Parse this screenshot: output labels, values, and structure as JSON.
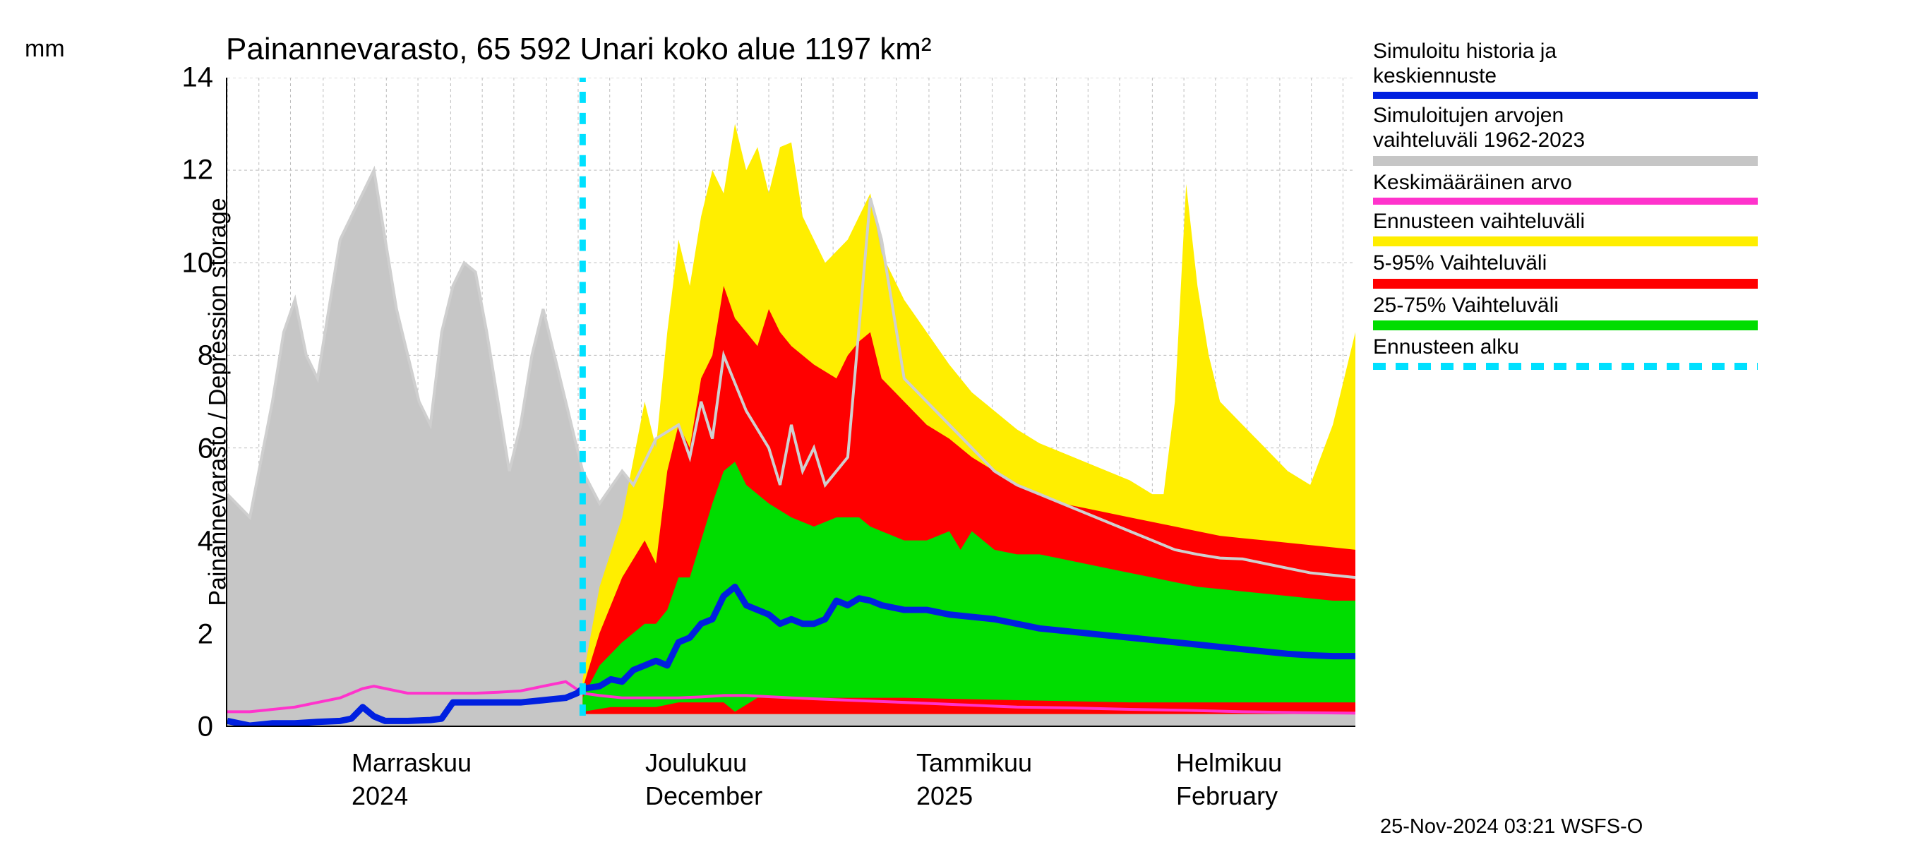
{
  "title": "Painannevarasto, 65 592 Unari koko alue 1197 km²",
  "y_axis": {
    "label": "Painannevarasto / Depression storage",
    "unit": "mm",
    "min": 0,
    "max": 14,
    "tick_step": 2,
    "ticks": [
      0,
      2,
      4,
      6,
      8,
      10,
      12,
      14
    ]
  },
  "x_axis": {
    "labels": [
      {
        "pos": 0.11,
        "line1": "Marraskuu",
        "line2": "2024"
      },
      {
        "pos": 0.37,
        "line1": "Joulukuu",
        "line2": "December"
      },
      {
        "pos": 0.61,
        "line1": "Tammikuu",
        "line2": "2025"
      },
      {
        "pos": 0.84,
        "line1": "Helmikuu",
        "line2": "February"
      }
    ],
    "grid_lines": [
      0.0,
      0.028,
      0.056,
      0.085,
      0.113,
      0.141,
      0.169,
      0.198,
      0.226,
      0.254,
      0.283,
      0.311,
      0.339,
      0.367,
      0.396,
      0.424,
      0.452,
      0.48,
      0.509,
      0.537,
      0.565,
      0.593,
      0.622,
      0.65,
      0.678,
      0.707,
      0.735,
      0.763,
      0.791,
      0.82,
      0.848,
      0.876,
      0.904,
      0.933,
      0.961,
      0.989
    ]
  },
  "forecast_start_x": 0.315,
  "colors": {
    "background": "#ffffff",
    "grid": "#bbbbbb",
    "historic_range": "#c6c6c6",
    "historic_range_line": "#cfcfcf",
    "mean": "#ff33cc",
    "blue": "#0020e0",
    "yellow": "#ffee00",
    "red": "#ff0000",
    "green": "#00dd00",
    "cyan": "#00e0ff"
  },
  "legend": [
    {
      "label1": "Simuloitu historia ja",
      "label2": "keskiennuste",
      "color": "#0020e0",
      "type": "line"
    },
    {
      "label1": "Simuloitujen arvojen",
      "label2": "vaihteluväli 1962-2023",
      "color": "#c6c6c6",
      "type": "band"
    },
    {
      "label1": "Keskimääräinen arvo",
      "label2": "",
      "color": "#ff33cc",
      "type": "line"
    },
    {
      "label1": "Ennusteen vaihteluväli",
      "label2": "",
      "color": "#ffee00",
      "type": "band"
    },
    {
      "label1": "5-95% Vaihteluväli",
      "label2": "",
      "color": "#ff0000",
      "type": "band"
    },
    {
      "label1": "25-75% Vaihteluväli",
      "label2": "",
      "color": "#00dd00",
      "type": "band"
    },
    {
      "label1": "Ennusteen alku",
      "label2": "",
      "color": "#00e0ff",
      "type": "dashed"
    }
  ],
  "timestamp": "25-Nov-2024 03:21 WSFS-O",
  "series": {
    "historic_gray_top": [
      [
        0.0,
        5.0
      ],
      [
        0.02,
        4.5
      ],
      [
        0.04,
        7.0
      ],
      [
        0.05,
        8.5
      ],
      [
        0.06,
        9.2
      ],
      [
        0.07,
        8.0
      ],
      [
        0.08,
        7.5
      ],
      [
        0.09,
        9.0
      ],
      [
        0.1,
        10.5
      ],
      [
        0.11,
        11.0
      ],
      [
        0.12,
        11.5
      ],
      [
        0.13,
        12.0
      ],
      [
        0.14,
        10.5
      ],
      [
        0.15,
        9.0
      ],
      [
        0.16,
        8.0
      ],
      [
        0.17,
        7.0
      ],
      [
        0.18,
        6.5
      ],
      [
        0.19,
        8.5
      ],
      [
        0.2,
        9.5
      ],
      [
        0.21,
        10.0
      ],
      [
        0.22,
        9.8
      ],
      [
        0.23,
        8.5
      ],
      [
        0.24,
        7.0
      ],
      [
        0.25,
        5.5
      ],
      [
        0.26,
        6.5
      ],
      [
        0.27,
        8.0
      ],
      [
        0.28,
        9.0
      ],
      [
        0.29,
        8.0
      ],
      [
        0.3,
        7.0
      ],
      [
        0.315,
        5.5
      ],
      [
        0.33,
        4.8
      ],
      [
        0.35,
        5.5
      ],
      [
        0.36,
        5.2
      ],
      [
        0.38,
        6.2
      ],
      [
        0.4,
        6.5
      ],
      [
        0.41,
        5.8
      ],
      [
        0.42,
        7.0
      ],
      [
        0.43,
        6.2
      ],
      [
        0.44,
        8.0
      ],
      [
        0.46,
        6.8
      ],
      [
        0.48,
        6.0
      ],
      [
        0.49,
        5.2
      ],
      [
        0.5,
        6.5
      ],
      [
        0.51,
        5.5
      ],
      [
        0.52,
        6.0
      ],
      [
        0.53,
        5.2
      ],
      [
        0.55,
        5.8
      ],
      [
        0.57,
        11.4
      ],
      [
        0.58,
        10.5
      ],
      [
        0.6,
        7.5
      ],
      [
        0.62,
        7.0
      ],
      [
        0.64,
        6.5
      ],
      [
        0.66,
        6.0
      ],
      [
        0.68,
        5.5
      ],
      [
        0.7,
        5.2
      ],
      [
        0.72,
        5.0
      ],
      [
        0.74,
        4.8
      ],
      [
        0.76,
        4.6
      ],
      [
        0.78,
        4.4
      ],
      [
        0.8,
        4.2
      ],
      [
        0.82,
        4.0
      ],
      [
        0.84,
        3.8
      ],
      [
        0.86,
        3.7
      ],
      [
        0.88,
        3.62
      ],
      [
        0.9,
        3.6
      ],
      [
        0.92,
        3.5
      ],
      [
        0.94,
        3.4
      ],
      [
        0.96,
        3.3
      ],
      [
        0.98,
        3.25
      ],
      [
        1.0,
        3.2
      ]
    ],
    "historic_gray_bot": [
      [
        0.0,
        0.0
      ],
      [
        1.0,
        0.0
      ]
    ],
    "yellow_top": [
      [
        0.315,
        1.0
      ],
      [
        0.33,
        3.0
      ],
      [
        0.35,
        4.5
      ],
      [
        0.37,
        7.0
      ],
      [
        0.38,
        6.0
      ],
      [
        0.39,
        8.5
      ],
      [
        0.4,
        10.5
      ],
      [
        0.41,
        9.5
      ],
      [
        0.42,
        11.0
      ],
      [
        0.43,
        12.0
      ],
      [
        0.44,
        11.5
      ],
      [
        0.45,
        13.0
      ],
      [
        0.46,
        12.0
      ],
      [
        0.47,
        12.5
      ],
      [
        0.48,
        11.5
      ],
      [
        0.49,
        12.5
      ],
      [
        0.5,
        12.6
      ],
      [
        0.51,
        11.0
      ],
      [
        0.52,
        10.5
      ],
      [
        0.53,
        10.0
      ],
      [
        0.55,
        10.5
      ],
      [
        0.56,
        11.0
      ],
      [
        0.57,
        11.5
      ],
      [
        0.58,
        10.2
      ],
      [
        0.6,
        9.2
      ],
      [
        0.62,
        8.5
      ],
      [
        0.64,
        7.8
      ],
      [
        0.66,
        7.2
      ],
      [
        0.68,
        6.8
      ],
      [
        0.7,
        6.4
      ],
      [
        0.72,
        6.1
      ],
      [
        0.74,
        5.9
      ],
      [
        0.76,
        5.7
      ],
      [
        0.78,
        5.5
      ],
      [
        0.8,
        5.3
      ],
      [
        0.82,
        5.0
      ],
      [
        0.83,
        5.0
      ],
      [
        0.84,
        7.0
      ],
      [
        0.85,
        11.7
      ],
      [
        0.86,
        9.5
      ],
      [
        0.87,
        8.0
      ],
      [
        0.88,
        7.0
      ],
      [
        0.9,
        6.5
      ],
      [
        0.92,
        6.0
      ],
      [
        0.94,
        5.5
      ],
      [
        0.96,
        5.2
      ],
      [
        0.98,
        6.5
      ],
      [
        1.0,
        8.5
      ]
    ],
    "red_top": [
      [
        0.315,
        0.8
      ],
      [
        0.33,
        2.0
      ],
      [
        0.35,
        3.2
      ],
      [
        0.37,
        4.0
      ],
      [
        0.38,
        3.5
      ],
      [
        0.39,
        5.5
      ],
      [
        0.4,
        6.5
      ],
      [
        0.41,
        6.0
      ],
      [
        0.42,
        7.5
      ],
      [
        0.43,
        8.0
      ],
      [
        0.44,
        9.5
      ],
      [
        0.45,
        8.8
      ],
      [
        0.46,
        8.5
      ],
      [
        0.47,
        8.2
      ],
      [
        0.48,
        9.0
      ],
      [
        0.49,
        8.5
      ],
      [
        0.5,
        8.2
      ],
      [
        0.52,
        7.8
      ],
      [
        0.54,
        7.5
      ],
      [
        0.55,
        8.0
      ],
      [
        0.56,
        8.3
      ],
      [
        0.57,
        8.5
      ],
      [
        0.58,
        7.5
      ],
      [
        0.6,
        7.0
      ],
      [
        0.62,
        6.5
      ],
      [
        0.64,
        6.2
      ],
      [
        0.66,
        5.8
      ],
      [
        0.68,
        5.5
      ],
      [
        0.7,
        5.2
      ],
      [
        0.72,
        5.0
      ],
      [
        0.74,
        4.8
      ],
      [
        0.76,
        4.7
      ],
      [
        0.78,
        4.6
      ],
      [
        0.8,
        4.5
      ],
      [
        0.82,
        4.4
      ],
      [
        0.84,
        4.3
      ],
      [
        0.86,
        4.2
      ],
      [
        0.88,
        4.1
      ],
      [
        0.9,
        4.05
      ],
      [
        0.92,
        4.0
      ],
      [
        0.94,
        3.95
      ],
      [
        0.96,
        3.9
      ],
      [
        0.98,
        3.85
      ],
      [
        1.0,
        3.8
      ]
    ],
    "green_top": [
      [
        0.315,
        0.6
      ],
      [
        0.33,
        1.3
      ],
      [
        0.35,
        1.8
      ],
      [
        0.37,
        2.2
      ],
      [
        0.38,
        2.2
      ],
      [
        0.39,
        2.5
      ],
      [
        0.4,
        3.2
      ],
      [
        0.41,
        3.2
      ],
      [
        0.42,
        4.0
      ],
      [
        0.43,
        4.8
      ],
      [
        0.44,
        5.5
      ],
      [
        0.45,
        5.7
      ],
      [
        0.46,
        5.2
      ],
      [
        0.48,
        4.8
      ],
      [
        0.5,
        4.5
      ],
      [
        0.52,
        4.3
      ],
      [
        0.54,
        4.5
      ],
      [
        0.56,
        4.5
      ],
      [
        0.57,
        4.3
      ],
      [
        0.58,
        4.2
      ],
      [
        0.6,
        4.0
      ],
      [
        0.62,
        4.0
      ],
      [
        0.64,
        4.2
      ],
      [
        0.65,
        3.8
      ],
      [
        0.66,
        4.2
      ],
      [
        0.68,
        3.8
      ],
      [
        0.7,
        3.7
      ],
      [
        0.72,
        3.7
      ],
      [
        0.74,
        3.6
      ],
      [
        0.76,
        3.5
      ],
      [
        0.78,
        3.4
      ],
      [
        0.8,
        3.3
      ],
      [
        0.82,
        3.2
      ],
      [
        0.84,
        3.1
      ],
      [
        0.86,
        3.0
      ],
      [
        0.88,
        2.95
      ],
      [
        0.9,
        2.9
      ],
      [
        0.92,
        2.85
      ],
      [
        0.94,
        2.8
      ],
      [
        0.96,
        2.75
      ],
      [
        0.98,
        2.7
      ],
      [
        1.0,
        2.7
      ]
    ],
    "green_bot": [
      [
        0.315,
        0.3
      ],
      [
        0.34,
        0.4
      ],
      [
        0.38,
        0.4
      ],
      [
        0.4,
        0.5
      ],
      [
        0.42,
        0.5
      ],
      [
        0.44,
        0.5
      ],
      [
        0.45,
        0.3
      ],
      [
        0.47,
        0.6
      ],
      [
        0.5,
        0.6
      ],
      [
        0.55,
        0.6
      ],
      [
        0.6,
        0.6
      ],
      [
        0.7,
        0.55
      ],
      [
        0.8,
        0.5
      ],
      [
        0.85,
        0.5
      ],
      [
        0.9,
        0.5
      ],
      [
        1.0,
        0.5
      ]
    ],
    "red_bot": [
      [
        0.315,
        0.3
      ],
      [
        0.34,
        0.3
      ],
      [
        0.4,
        0.3
      ],
      [
        0.42,
        0.45
      ],
      [
        0.44,
        0.6
      ],
      [
        0.46,
        1.2
      ],
      [
        0.48,
        1.3
      ],
      [
        0.5,
        1.3
      ],
      [
        0.55,
        1.0
      ],
      [
        0.6,
        0.8
      ],
      [
        0.65,
        0.7
      ],
      [
        0.7,
        0.6
      ],
      [
        0.8,
        0.55
      ],
      [
        0.9,
        0.5
      ],
      [
        1.0,
        0.5
      ]
    ],
    "yellow_bot": [
      [
        0.315,
        0.25
      ],
      [
        0.4,
        0.25
      ],
      [
        0.5,
        0.25
      ],
      [
        0.6,
        0.25
      ],
      [
        0.7,
        0.25
      ],
      [
        0.8,
        0.25
      ],
      [
        0.9,
        0.25
      ],
      [
        1.0,
        0.25
      ]
    ],
    "blue": [
      [
        0.0,
        0.1
      ],
      [
        0.02,
        0.0
      ],
      [
        0.04,
        0.05
      ],
      [
        0.06,
        0.05
      ],
      [
        0.08,
        0.08
      ],
      [
        0.1,
        0.1
      ],
      [
        0.11,
        0.15
      ],
      [
        0.12,
        0.4
      ],
      [
        0.13,
        0.2
      ],
      [
        0.14,
        0.1
      ],
      [
        0.16,
        0.1
      ],
      [
        0.18,
        0.12
      ],
      [
        0.19,
        0.15
      ],
      [
        0.2,
        0.5
      ],
      [
        0.21,
        0.5
      ],
      [
        0.22,
        0.5
      ],
      [
        0.24,
        0.5
      ],
      [
        0.26,
        0.5
      ],
      [
        0.28,
        0.55
      ],
      [
        0.3,
        0.6
      ],
      [
        0.31,
        0.7
      ],
      [
        0.315,
        0.8
      ],
      [
        0.33,
        0.85
      ],
      [
        0.34,
        1.0
      ],
      [
        0.35,
        0.95
      ],
      [
        0.36,
        1.2
      ],
      [
        0.37,
        1.3
      ],
      [
        0.38,
        1.4
      ],
      [
        0.39,
        1.3
      ],
      [
        0.4,
        1.8
      ],
      [
        0.41,
        1.9
      ],
      [
        0.42,
        2.2
      ],
      [
        0.43,
        2.3
      ],
      [
        0.44,
        2.8
      ],
      [
        0.45,
        3.0
      ],
      [
        0.46,
        2.6
      ],
      [
        0.47,
        2.5
      ],
      [
        0.48,
        2.4
      ],
      [
        0.49,
        2.2
      ],
      [
        0.5,
        2.3
      ],
      [
        0.51,
        2.2
      ],
      [
        0.52,
        2.2
      ],
      [
        0.53,
        2.3
      ],
      [
        0.54,
        2.7
      ],
      [
        0.55,
        2.6
      ],
      [
        0.56,
        2.75
      ],
      [
        0.57,
        2.7
      ],
      [
        0.58,
        2.6
      ],
      [
        0.6,
        2.5
      ],
      [
        0.62,
        2.5
      ],
      [
        0.64,
        2.4
      ],
      [
        0.66,
        2.35
      ],
      [
        0.68,
        2.3
      ],
      [
        0.7,
        2.2
      ],
      [
        0.72,
        2.1
      ],
      [
        0.74,
        2.05
      ],
      [
        0.76,
        2.0
      ],
      [
        0.78,
        1.95
      ],
      [
        0.8,
        1.9
      ],
      [
        0.82,
        1.85
      ],
      [
        0.84,
        1.8
      ],
      [
        0.86,
        1.75
      ],
      [
        0.88,
        1.7
      ],
      [
        0.9,
        1.65
      ],
      [
        0.92,
        1.6
      ],
      [
        0.94,
        1.55
      ],
      [
        0.96,
        1.52
      ],
      [
        0.98,
        1.5
      ],
      [
        1.0,
        1.5
      ]
    ],
    "magenta": [
      [
        0.0,
        0.3
      ],
      [
        0.02,
        0.3
      ],
      [
        0.04,
        0.35
      ],
      [
        0.06,
        0.4
      ],
      [
        0.08,
        0.5
      ],
      [
        0.1,
        0.6
      ],
      [
        0.11,
        0.7
      ],
      [
        0.12,
        0.8
      ],
      [
        0.13,
        0.85
      ],
      [
        0.14,
        0.8
      ],
      [
        0.15,
        0.75
      ],
      [
        0.16,
        0.7
      ],
      [
        0.18,
        0.7
      ],
      [
        0.2,
        0.7
      ],
      [
        0.22,
        0.7
      ],
      [
        0.24,
        0.72
      ],
      [
        0.26,
        0.75
      ],
      [
        0.28,
        0.85
      ],
      [
        0.3,
        0.95
      ],
      [
        0.315,
        0.7
      ],
      [
        0.33,
        0.65
      ],
      [
        0.35,
        0.6
      ],
      [
        0.37,
        0.6
      ],
      [
        0.4,
        0.6
      ],
      [
        0.42,
        0.62
      ],
      [
        0.44,
        0.65
      ],
      [
        0.46,
        0.65
      ],
      [
        0.5,
        0.6
      ],
      [
        0.55,
        0.55
      ],
      [
        0.6,
        0.5
      ],
      [
        0.65,
        0.45
      ],
      [
        0.7,
        0.4
      ],
      [
        0.75,
        0.38
      ],
      [
        0.8,
        0.35
      ],
      [
        0.85,
        0.33
      ],
      [
        0.9,
        0.3
      ],
      [
        0.95,
        0.28
      ],
      [
        1.0,
        0.27
      ]
    ]
  },
  "line_widths": {
    "blue": 9,
    "magenta": 4,
    "gray_line": 4
  },
  "axis_font_size": 36,
  "title_font_size": 44,
  "legend_font_size": 30
}
